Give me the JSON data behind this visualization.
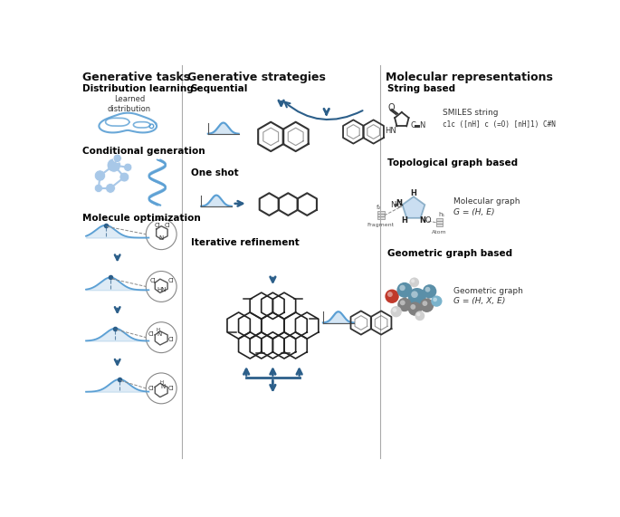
{
  "title_left": "Generative tasks",
  "title_mid": "Generative strategies",
  "title_right": "Molecular representations",
  "section_left": [
    "Distribution learning",
    "Conditional generation",
    "Molecule optimization"
  ],
  "section_mid": [
    "Sequential",
    "One shot",
    "Iterative refinement"
  ],
  "section_right": [
    "String based",
    "Topological graph based",
    "Geometric graph based"
  ],
  "bg_color": "#ffffff",
  "text_color": "#1a1a1a",
  "blue_light": "#a8c8e8",
  "blue_mid": "#5a9fd4",
  "blue_dark": "#2c5f8a",
  "arrow_color": "#1a3a5c",
  "divider_color": "#cccccc",
  "smiles_text": "c1c ([nH] c (=O) [nH]1) C#N",
  "mol_graph_text": "G = (H, E)",
  "geo_graph_text": "G = (H, X, E)",
  "smiles_label": "SMILES string",
  "mol_graph_label": "Molecular graph",
  "geo_graph_label": "Geometric graph"
}
